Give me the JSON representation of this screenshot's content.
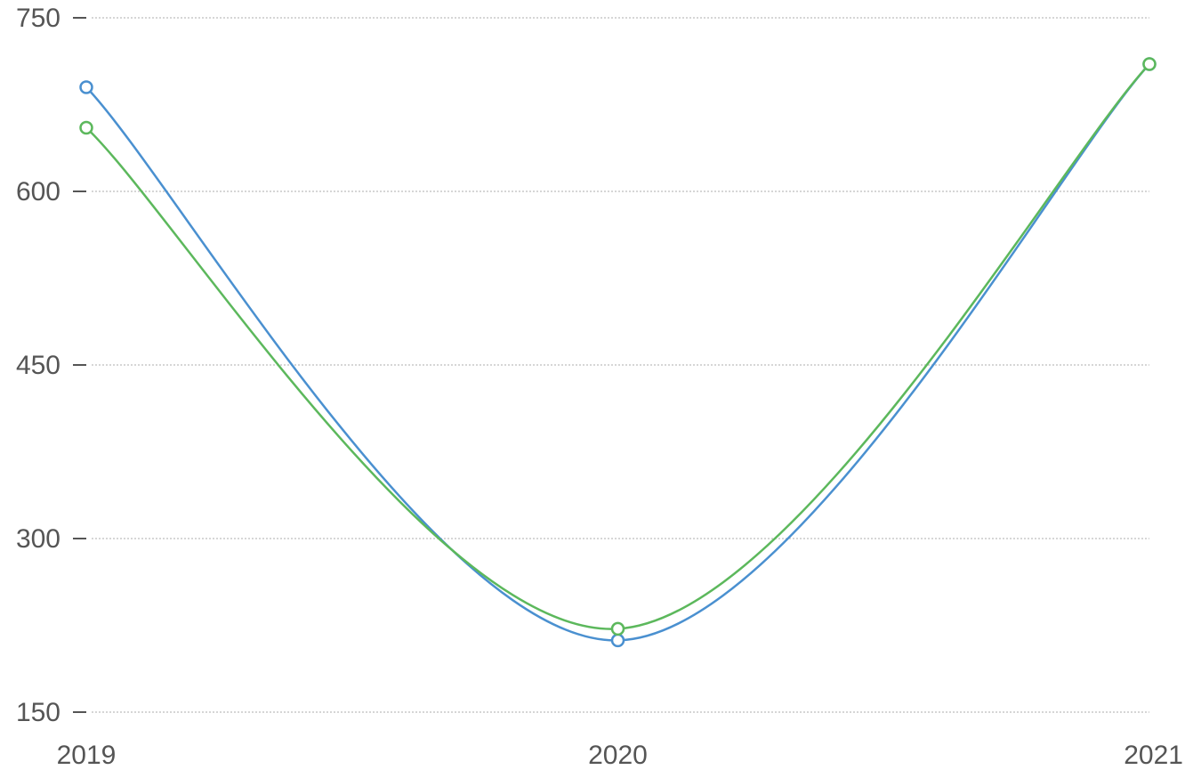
{
  "chart_data": {
    "type": "line",
    "x": [
      "2019",
      "2020",
      "2021"
    ],
    "ylim": [
      150,
      750
    ],
    "yticks": [
      "150",
      "300",
      "450",
      "600",
      "750"
    ],
    "grid": true,
    "curve": "smooth",
    "series": [
      {
        "color": "#4a90d0",
        "values": [
          690,
          212,
          710
        ]
      },
      {
        "color": "#5cb85c",
        "values": [
          655,
          222,
          710
        ]
      }
    ]
  }
}
